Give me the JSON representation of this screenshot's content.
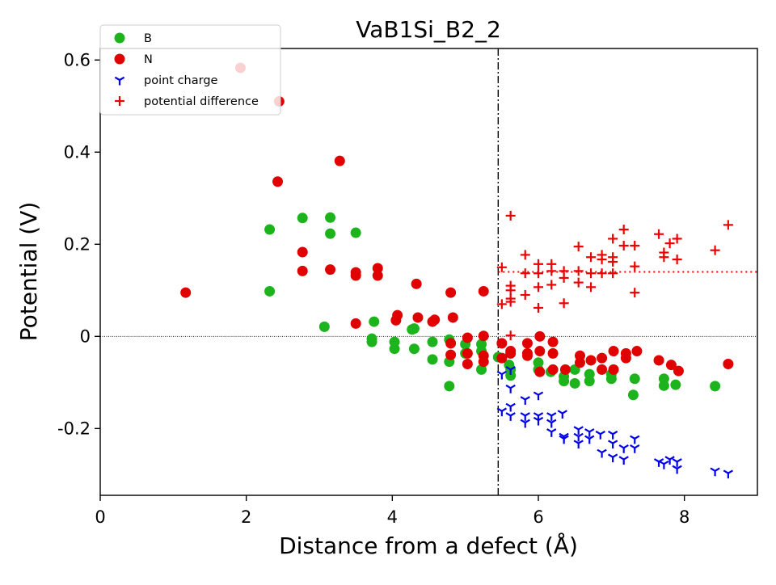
{
  "chart_data": {
    "type": "scatter",
    "title": "VaB1Si_B2_2",
    "xlabel": "Distance from a defect (Å)",
    "ylabel": "Potential (V)",
    "xlim": [
      0,
      9
    ],
    "ylim": [
      -0.345,
      0.625
    ],
    "x_ticks": [
      0,
      2,
      4,
      6,
      8
    ],
    "x_tick_labels": [
      "0",
      "2",
      "4",
      "6",
      "8"
    ],
    "y_ticks": [
      -0.2,
      0,
      0.2,
      0.4,
      0.6
    ],
    "y_tick_labels": [
      "-0.2",
      "0",
      "0.2",
      "0.4",
      "0.6"
    ],
    "grid": false,
    "legend_position": "top-left",
    "reference_lines": {
      "zero_line_y": 0,
      "defect_region_x": 5.45,
      "average_potential_difference_y": 0.14,
      "average_line_from_x": 5.45
    },
    "colors": {
      "B": "#1db31d",
      "N": "#e00000",
      "point_charge": "#0000ee",
      "potential_difference": "#ee0000"
    },
    "series": [
      {
        "name": "B",
        "marker": "circle",
        "points": [
          [
            2.32,
            0.232
          ],
          [
            2.32,
            0.098
          ],
          [
            2.77,
            0.257
          ],
          [
            3.07,
            0.021
          ],
          [
            3.15,
            0.258
          ],
          [
            3.15,
            0.223
          ],
          [
            3.5,
            0.225
          ],
          [
            3.72,
            -0.005
          ],
          [
            3.72,
            -0.012
          ],
          [
            3.75,
            0.032
          ],
          [
            4.03,
            -0.012
          ],
          [
            4.03,
            -0.027
          ],
          [
            4.27,
            0.015
          ],
          [
            4.3,
            0.017
          ],
          [
            4.3,
            -0.027
          ],
          [
            4.55,
            -0.012
          ],
          [
            4.55,
            -0.05
          ],
          [
            4.78,
            -0.007
          ],
          [
            4.78,
            -0.055
          ],
          [
            4.78,
            -0.108
          ],
          [
            5.0,
            -0.017
          ],
          [
            5.0,
            -0.037
          ],
          [
            5.22,
            -0.017
          ],
          [
            5.22,
            -0.032
          ],
          [
            5.22,
            -0.072
          ],
          [
            5.45,
            -0.045
          ],
          [
            5.6,
            -0.062
          ],
          [
            5.62,
            -0.072
          ],
          [
            5.62,
            -0.085
          ],
          [
            6.0,
            -0.057
          ],
          [
            6.0,
            -0.072
          ],
          [
            6.17,
            -0.077
          ],
          [
            6.35,
            -0.087
          ],
          [
            6.35,
            -0.097
          ],
          [
            6.5,
            -0.072
          ],
          [
            6.5,
            -0.102
          ],
          [
            6.7,
            -0.082
          ],
          [
            6.7,
            -0.097
          ],
          [
            7.0,
            -0.082
          ],
          [
            7.0,
            -0.092
          ],
          [
            7.32,
            -0.092
          ],
          [
            7.3,
            -0.127
          ],
          [
            7.72,
            -0.092
          ],
          [
            7.72,
            -0.107
          ],
          [
            7.88,
            -0.105
          ],
          [
            8.42,
            -0.108
          ]
        ]
      },
      {
        "name": "N",
        "marker": "circle",
        "points": [
          [
            1.17,
            0.095
          ],
          [
            1.92,
            0.583
          ],
          [
            2.45,
            0.51
          ],
          [
            2.43,
            0.336
          ],
          [
            2.77,
            0.183
          ],
          [
            2.77,
            0.142
          ],
          [
            3.15,
            0.145
          ],
          [
            3.28,
            0.381
          ],
          [
            3.5,
            0.139
          ],
          [
            3.5,
            0.132
          ],
          [
            3.5,
            0.028
          ],
          [
            3.8,
            0.148
          ],
          [
            3.8,
            0.132
          ],
          [
            4.05,
            0.035
          ],
          [
            4.07,
            0.046
          ],
          [
            4.33,
            0.114
          ],
          [
            4.35,
            0.041
          ],
          [
            4.55,
            0.032
          ],
          [
            4.58,
            0.036
          ],
          [
            4.8,
            0.095
          ],
          [
            4.83,
            0.041
          ],
          [
            4.8,
            -0.015
          ],
          [
            4.8,
            -0.04
          ],
          [
            5.03,
            -0.003
          ],
          [
            5.03,
            -0.037
          ],
          [
            5.03,
            -0.06
          ],
          [
            5.25,
            0.098
          ],
          [
            5.25,
            0.001
          ],
          [
            5.25,
            -0.042
          ],
          [
            5.25,
            -0.055
          ],
          [
            5.5,
            -0.015
          ],
          [
            5.5,
            -0.047
          ],
          [
            5.62,
            -0.032
          ],
          [
            5.62,
            -0.037
          ],
          [
            5.85,
            -0.015
          ],
          [
            5.85,
            -0.037
          ],
          [
            5.85,
            -0.042
          ],
          [
            6.02,
            0.0
          ],
          [
            6.02,
            -0.032
          ],
          [
            6.02,
            -0.077
          ],
          [
            6.2,
            -0.012
          ],
          [
            6.2,
            -0.037
          ],
          [
            6.2,
            -0.072
          ],
          [
            6.37,
            -0.072
          ],
          [
            6.57,
            -0.042
          ],
          [
            6.57,
            -0.057
          ],
          [
            6.72,
            -0.052
          ],
          [
            6.87,
            -0.047
          ],
          [
            6.87,
            -0.072
          ],
          [
            7.03,
            -0.032
          ],
          [
            7.03,
            -0.072
          ],
          [
            7.2,
            -0.037
          ],
          [
            7.2,
            -0.047
          ],
          [
            7.35,
            -0.032
          ],
          [
            7.65,
            -0.052
          ],
          [
            7.82,
            -0.062
          ],
          [
            7.92,
            -0.075
          ],
          [
            8.6,
            -0.06
          ]
        ]
      },
      {
        "name": "point charge",
        "marker": "tri_down",
        "points": [
          [
            5.5,
            -0.082
          ],
          [
            5.5,
            -0.162
          ],
          [
            5.62,
            -0.072
          ],
          [
            5.62,
            -0.112
          ],
          [
            5.62,
            -0.152
          ],
          [
            5.62,
            -0.172
          ],
          [
            5.82,
            -0.137
          ],
          [
            5.82,
            -0.172
          ],
          [
            5.82,
            -0.187
          ],
          [
            6.0,
            -0.127
          ],
          [
            6.0,
            -0.172
          ],
          [
            6.0,
            -0.182
          ],
          [
            6.18,
            -0.172
          ],
          [
            6.18,
            -0.187
          ],
          [
            6.18,
            -0.207
          ],
          [
            6.33,
            -0.167
          ],
          [
            6.35,
            -0.217
          ],
          [
            6.35,
            -0.222
          ],
          [
            6.55,
            -0.202
          ],
          [
            6.55,
            -0.217
          ],
          [
            6.55,
            -0.232
          ],
          [
            6.7,
            -0.207
          ],
          [
            6.7,
            -0.222
          ],
          [
            6.85,
            -0.212
          ],
          [
            6.87,
            -0.252
          ],
          [
            7.02,
            -0.212
          ],
          [
            7.02,
            -0.232
          ],
          [
            7.02,
            -0.262
          ],
          [
            7.17,
            -0.242
          ],
          [
            7.17,
            -0.267
          ],
          [
            7.32,
            -0.222
          ],
          [
            7.32,
            -0.242
          ],
          [
            7.65,
            -0.272
          ],
          [
            7.72,
            -0.277
          ],
          [
            7.8,
            -0.267
          ],
          [
            7.9,
            -0.272
          ],
          [
            7.9,
            -0.287
          ],
          [
            8.42,
            -0.292
          ],
          [
            8.6,
            -0.297
          ]
        ]
      },
      {
        "name": "potential difference",
        "marker": "plus",
        "points": [
          [
            5.5,
            0.15
          ],
          [
            5.5,
            0.07
          ],
          [
            5.62,
            0.262
          ],
          [
            5.62,
            0.11
          ],
          [
            5.62,
            0.1
          ],
          [
            5.62,
            0.082
          ],
          [
            5.62,
            0.075
          ],
          [
            5.62,
            0.002
          ],
          [
            5.82,
            0.177
          ],
          [
            5.82,
            0.137
          ],
          [
            5.82,
            0.09
          ],
          [
            6.0,
            0.157
          ],
          [
            6.0,
            0.137
          ],
          [
            6.0,
            0.107
          ],
          [
            6.0,
            0.062
          ],
          [
            6.18,
            0.157
          ],
          [
            6.18,
            0.142
          ],
          [
            6.18,
            0.112
          ],
          [
            6.35,
            0.142
          ],
          [
            6.35,
            0.127
          ],
          [
            6.35,
            0.072
          ],
          [
            6.55,
            0.195
          ],
          [
            6.55,
            0.142
          ],
          [
            6.55,
            0.117
          ],
          [
            6.72,
            0.172
          ],
          [
            6.72,
            0.137
          ],
          [
            6.72,
            0.107
          ],
          [
            6.87,
            0.177
          ],
          [
            6.87,
            0.167
          ],
          [
            6.87,
            0.137
          ],
          [
            7.02,
            0.212
          ],
          [
            7.02,
            0.172
          ],
          [
            7.02,
            0.162
          ],
          [
            7.02,
            0.137
          ],
          [
            7.17,
            0.232
          ],
          [
            7.17,
            0.197
          ],
          [
            7.32,
            0.197
          ],
          [
            7.32,
            0.152
          ],
          [
            7.32,
            0.095
          ],
          [
            7.65,
            0.222
          ],
          [
            7.72,
            0.182
          ],
          [
            7.72,
            0.172
          ],
          [
            7.8,
            0.202
          ],
          [
            7.9,
            0.212
          ],
          [
            7.9,
            0.167
          ],
          [
            8.42,
            0.187
          ],
          [
            8.6,
            0.242
          ]
        ]
      }
    ]
  }
}
